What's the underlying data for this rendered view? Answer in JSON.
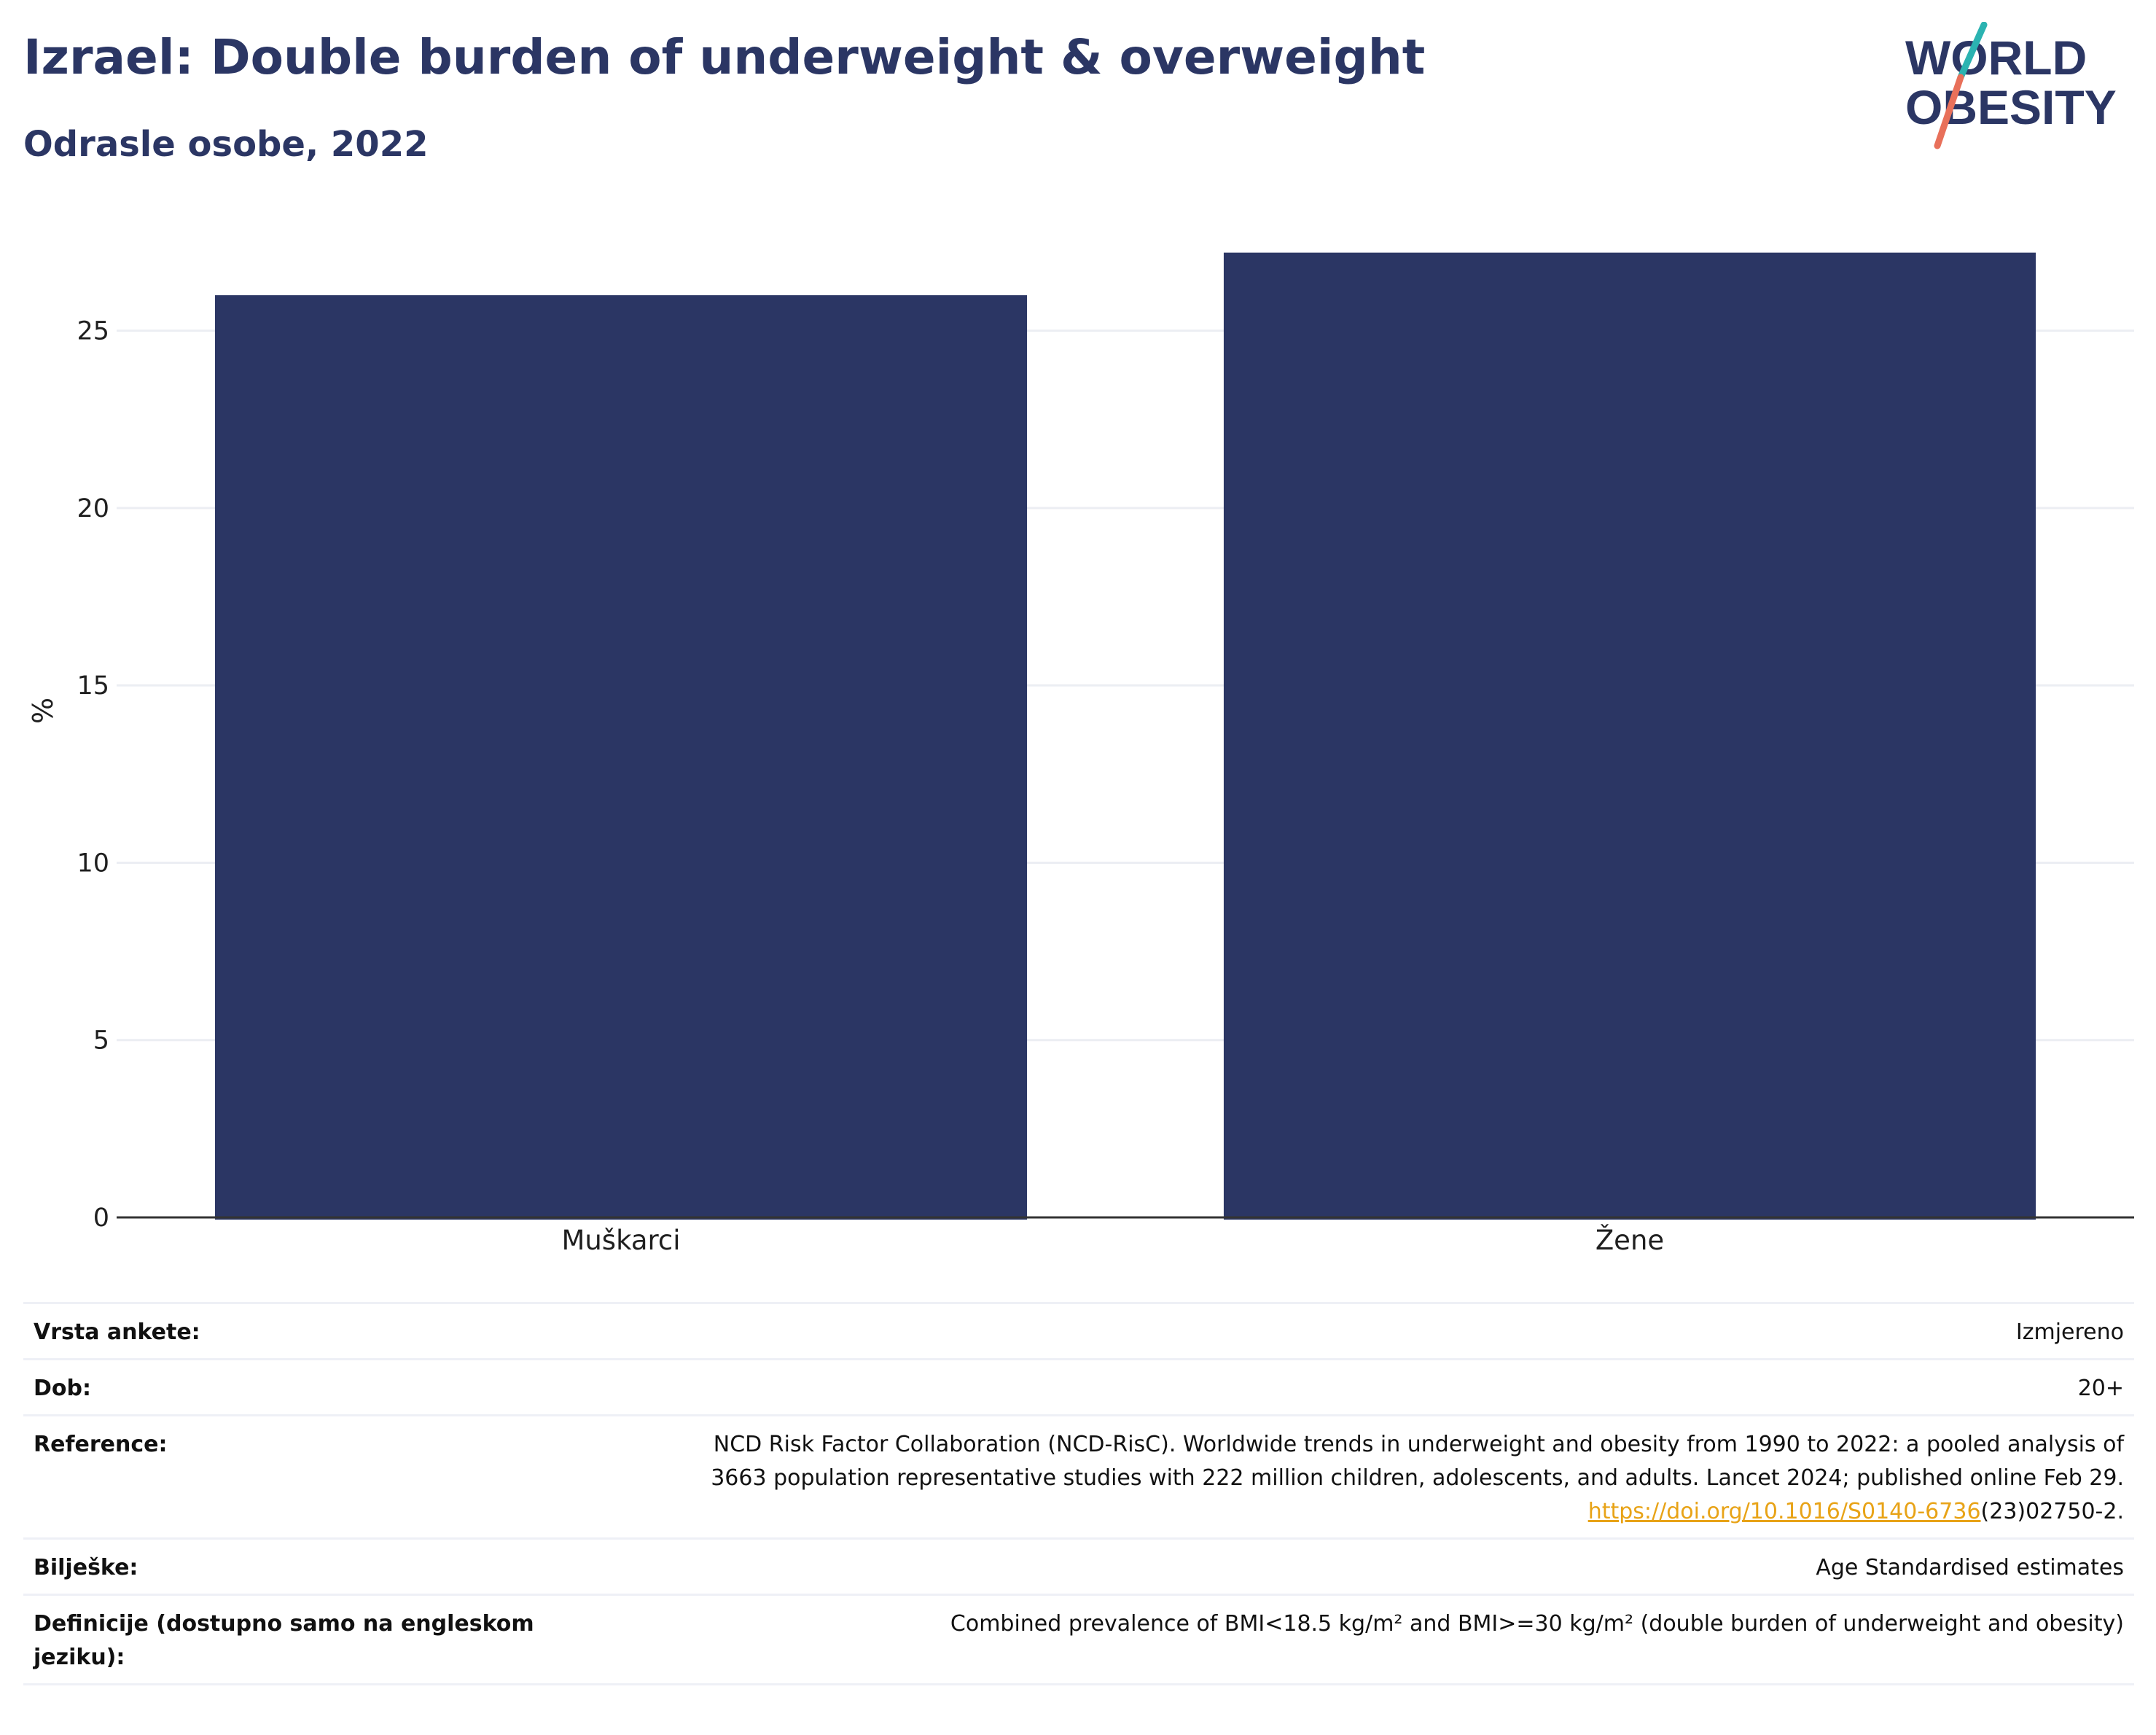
{
  "header": {
    "title": "Izrael: Double burden of underweight & overweight",
    "subtitle": "Odrasle osobe, 2022"
  },
  "logo": {
    "line1": "WORLD",
    "line2": "OBESITY",
    "colors": {
      "text": "#2b3664",
      "slash_top": "#2bb3b1",
      "slash_bottom": "#e8705a"
    }
  },
  "chart_data": {
    "type": "bar",
    "categories": [
      "Muškarci",
      "Žene"
    ],
    "values": [
      26.0,
      27.2
    ],
    "ylabel": "%",
    "ylim": [
      0,
      27.5
    ],
    "yticks": [
      0,
      5,
      10,
      15,
      20,
      25
    ],
    "bar_color": "#2b3664",
    "grid": true
  },
  "info": {
    "rows": [
      {
        "key": "Vrsta ankete:",
        "value": "Izmjereno"
      },
      {
        "key": "Dob:",
        "value": "20+"
      },
      {
        "key": "Reference:",
        "value_line1": "NCD Risk Factor Collaboration (NCD-RisC). Worldwide trends in underweight and obesity from 1990 to 2022: a pooled analysis of",
        "value_line2": "3663 population representative studies with 222 million children, adolescents, and adults. Lancet 2024; published online Feb 29.",
        "link_text": "https://doi.org/10.1016/S0140-6736",
        "link_suffix": "(23)02750-2."
      },
      {
        "key": "Bilješke:",
        "value": "Age Standardised estimates"
      },
      {
        "key": "Definicije (dostupno samo na engleskom jeziku):",
        "value": "Combined prevalence of BMI<18.5 kg/m² and BMI>=30 kg/m² (double burden of underweight and obesity)"
      }
    ]
  }
}
